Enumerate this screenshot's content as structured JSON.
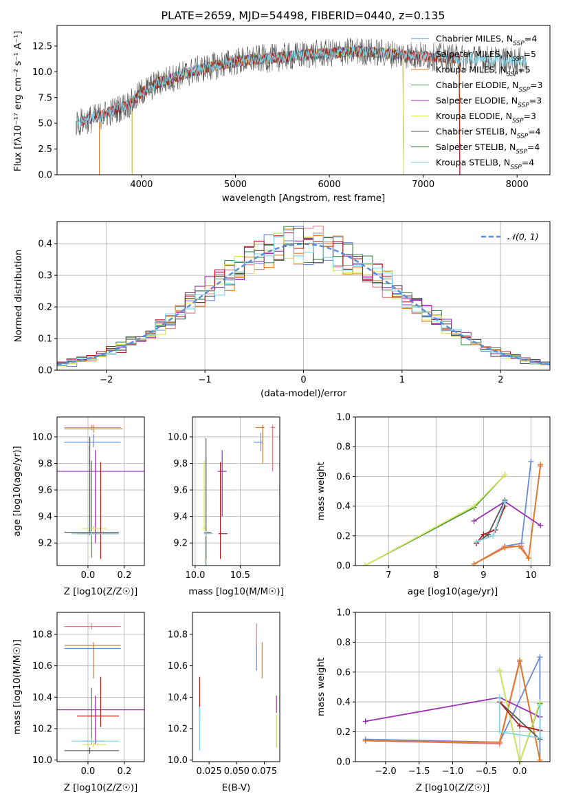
{
  "title": "PLATE=2659, MJD=54498, FIBERID=0440, z=0.135",
  "colors": {
    "Chabrier MILES": "#6a8ad8",
    "Salpeter MILES": "#e07a86",
    "Kroupa MILES": "#e07a22",
    "Chabrier ELODIE": "#3f8f48",
    "Salpeter ELODIE": "#9a2fb0",
    "Kroupa ELODIE": "#d7e65a",
    "Chabrier STELIB": "#555555",
    "Salpeter STELIB": "#b02020",
    "Kroupa STELIB": "#7fd6e8",
    "gauss": "#5a8ed6",
    "grid": "#b0b0b0"
  },
  "chart_data": [
    {
      "type": "line",
      "id": "spectrum",
      "title": "PLATE=2659, MJD=54498, FIBERID=0440, z=0.135",
      "xlabel": "wavelength [Angstrom, rest frame]",
      "ylabel": "Flux [fλ10⁻¹⁷ erg cm⁻² s⁻¹ A⁻¹]",
      "xlim": [
        3100,
        8350
      ],
      "ylim": [
        0,
        14.5
      ],
      "xticks": [
        4000,
        5000,
        6000,
        7000,
        8000
      ],
      "yticks": [
        0.0,
        2.5,
        5.0,
        7.5,
        10.0,
        12.5
      ],
      "grid": false,
      "legend_position": "right",
      "legend": [
        "Chabrier MILES, N_SSP=4",
        "Salpeter MILES, N_SSP=5",
        "Kroupa MILES, N_SSP=5",
        "Chabrier ELODIE, N_SSP=3",
        "Salpeter ELODIE, N_SSP=3",
        "Kroupa ELODIE, N_SSP=3",
        "Chabrier STELIB, N_SSP=4",
        "Salpeter STELIB, N_SSP=4",
        "Kroupa STELIB, N_SSP=4"
      ],
      "continuum": {
        "x": [
          3300,
          3500,
          3700,
          3900,
          4000,
          4200,
          4400,
          4600,
          4800,
          5000,
          5200,
          5500,
          5800,
          6000,
          6300,
          6600,
          6900,
          7200,
          7500,
          7800,
          8100
        ],
        "y": [
          5.0,
          5.5,
          6.2,
          7.0,
          8.0,
          9.0,
          9.6,
          10.2,
          10.6,
          11.0,
          11.2,
          11.4,
          11.7,
          11.8,
          12.0,
          11.8,
          11.6,
          11.4,
          11.3,
          11.1,
          11.0
        ]
      },
      "series_ranges": [
        {
          "name": "Chabrier MILES",
          "xmin": 3350,
          "xmax": 7400
        },
        {
          "name": "Salpeter MILES",
          "xmin": 3550,
          "xmax": 7400
        },
        {
          "name": "Kroupa MILES",
          "xmin": 3550,
          "xmax": 7400
        },
        {
          "name": "Chabrier ELODIE",
          "xmin": 3900,
          "xmax": 6800
        },
        {
          "name": "Salpeter ELODIE",
          "xmin": 3900,
          "xmax": 6800
        },
        {
          "name": "Kroupa ELODIE",
          "xmin": 3900,
          "xmax": 6800
        },
        {
          "name": "Chabrier STELIB",
          "xmin": 3300,
          "xmax": 8100
        },
        {
          "name": "Salpeter STELIB",
          "xmin": 3350,
          "xmax": 7400
        },
        {
          "name": "Kroupa STELIB",
          "xmin": 3300,
          "xmax": 8100
        }
      ]
    },
    {
      "type": "histogram",
      "id": "residuals",
      "xlabel": "(data-model)/error",
      "ylabel": "Normed distribution",
      "xlim": [
        -2.5,
        2.5
      ],
      "ylim": [
        0,
        0.47
      ],
      "xticks": [
        -2,
        -1,
        0,
        1,
        2
      ],
      "yticks": [
        0.0,
        0.1,
        0.2,
        0.3,
        0.4
      ],
      "grid": true,
      "legend": [
        "𝒩(0, 1)"
      ],
      "legend_position": "top-right",
      "bin_width": 0.1
    },
    {
      "type": "errorbar",
      "id": "age-vs-Z",
      "xlabel": "Z [log10(Z/Z☉)]",
      "ylabel": "age  [log10(age/yr)]",
      "xlim": [
        -0.17,
        0.31
      ],
      "ylim": [
        9.03,
        10.15
      ],
      "xticks": [
        0.0,
        0.2
      ],
      "yticks": [
        9.2,
        9.4,
        9.6,
        9.8,
        10.0
      ],
      "grid": true,
      "points": [
        {
          "name": "Chabrier MILES",
          "x": 0.03,
          "xerr": [
            0.16,
            0.15
          ],
          "y": 9.96,
          "yerr": [
            0.04,
            0.06
          ]
        },
        {
          "name": "Salpeter MILES",
          "x": 0.02,
          "xerr": [
            0.15,
            0.16
          ],
          "y": 10.07,
          "yerr": [
            0.02,
            0.02
          ]
        },
        {
          "name": "Kroupa MILES",
          "x": 0.03,
          "xerr": [
            0.16,
            0.16
          ],
          "y": 10.06,
          "yerr": [
            0.03,
            0.03
          ]
        },
        {
          "name": "Chabrier ELODIE",
          "x": 0.02,
          "xerr": [
            0.05,
            0.07
          ],
          "y": 9.27,
          "yerr": [
            0.18,
            0.55
          ]
        },
        {
          "name": "Salpeter ELODIE",
          "x": 0.04,
          "xerr": [
            0.33,
            0.28
          ],
          "y": 9.74,
          "yerr": [
            0.54,
            0.16
          ]
        },
        {
          "name": "Kroupa ELODIE",
          "x": 0.03,
          "xerr": [
            0.06,
            0.07
          ],
          "y": 9.31,
          "yerr": [
            0.02,
            0.02
          ]
        },
        {
          "name": "Chabrier STELIB",
          "x": 0.01,
          "xerr": [
            0.14,
            0.16
          ],
          "y": 9.28,
          "yerr": [
            0.02,
            0.72
          ]
        },
        {
          "name": "Salpeter STELIB",
          "x": 0.07,
          "xerr": [
            0.13,
            0.1
          ],
          "y": 9.27,
          "yerr": [
            0.19,
            0.54
          ]
        },
        {
          "name": "Kroupa STELIB",
          "x": 0.02,
          "xerr": [
            0.11,
            0.15
          ],
          "y": 9.27,
          "yerr": [
            0.02,
            0.02
          ]
        }
      ]
    },
    {
      "type": "errorbar",
      "id": "age-vs-mass",
      "xlabel": "mass [log10(M/M☉)]",
      "ylabel": "",
      "xlim": [
        9.97,
        10.94
      ],
      "ylim": [
        9.03,
        10.15
      ],
      "xticks": [
        10.0,
        10.5
      ],
      "yticks": [
        9.2,
        9.4,
        9.6,
        9.8,
        10.0
      ],
      "grid": true,
      "points": [
        {
          "name": "Chabrier MILES",
          "x": 10.73,
          "xerr": [
            0.08,
            0.02
          ],
          "y": 9.96,
          "yerr": [
            0.07,
            0.07
          ]
        },
        {
          "name": "Salpeter MILES",
          "x": 10.86,
          "xerr": [
            0.02,
            0.03
          ],
          "y": 10.07,
          "yerr": [
            0.33,
            0.02
          ]
        },
        {
          "name": "Kroupa MILES",
          "x": 10.75,
          "xerr": [
            0.08,
            0.02
          ],
          "y": 10.07,
          "yerr": [
            0.27,
            0.02
          ]
        },
        {
          "name": "Chabrier ELODIE",
          "x": 10.12,
          "xerr": [
            0.02,
            0.02
          ],
          "y": 9.27,
          "yerr": [
            0.55,
            0.58
          ]
        },
        {
          "name": "Salpeter ELODIE",
          "x": 10.3,
          "xerr": [
            0.05,
            0.05
          ],
          "y": 9.74,
          "yerr": [
            0.34,
            0.16
          ]
        },
        {
          "name": "Kroupa ELODIE",
          "x": 10.1,
          "xerr": [
            0.02,
            0.03
          ],
          "y": 9.31,
          "yerr": [
            0.02,
            0.51
          ]
        },
        {
          "name": "Chabrier STELIB",
          "x": 10.12,
          "xerr": [
            0.02,
            0.06
          ],
          "y": 9.28,
          "yerr": [
            0.2,
            0.71
          ]
        },
        {
          "name": "Salpeter STELIB",
          "x": 10.28,
          "xerr": [
            0.02,
            0.08
          ],
          "y": 9.27,
          "yerr": [
            0.19,
            0.54
          ]
        },
        {
          "name": "Kroupa STELIB",
          "x": 10.12,
          "xerr": [
            0.02,
            0.08
          ],
          "y": 9.27,
          "yerr": [
            0.02,
            0.02
          ]
        }
      ]
    },
    {
      "type": "line",
      "id": "mass-weight-vs-age",
      "xlabel": "age  [log10(age/yr)]",
      "ylabel": "mass weight",
      "xlim": [
        6.3,
        10.4
      ],
      "ylim": [
        0,
        1.0
      ],
      "xticks": [
        7,
        8,
        9,
        10
      ],
      "yticks": [
        0.0,
        0.2,
        0.4,
        0.6,
        0.8,
        1.0
      ],
      "grid": true,
      "series": [
        {
          "name": "Chabrier MILES",
          "x": [
            9.45,
            9.8,
            10.0
          ],
          "y": [
            0.13,
            0.15,
            0.7
          ]
        },
        {
          "name": "Salpeter MILES",
          "x": [
            8.8,
            9.45,
            9.8,
            9.95,
            10.2
          ],
          "y": [
            0.01,
            0.13,
            0.13,
            0.05,
            0.67
          ]
        },
        {
          "name": "Kroupa MILES",
          "x": [
            8.8,
            9.45,
            9.75,
            9.95,
            10.2
          ],
          "y": [
            0.01,
            0.12,
            0.13,
            0.05,
            0.68
          ]
        },
        {
          "name": "Chabrier ELODIE",
          "x": [
            6.5,
            8.8,
            9.45
          ],
          "y": [
            0.0,
            0.39,
            0.61
          ]
        },
        {
          "name": "Salpeter ELODIE",
          "x": [
            8.8,
            9.45,
            10.2
          ],
          "y": [
            0.3,
            0.43,
            0.27
          ]
        },
        {
          "name": "Kroupa ELODIE",
          "x": [
            6.5,
            8.8,
            9.45
          ],
          "y": [
            0.0,
            0.4,
            0.61
          ]
        },
        {
          "name": "Chabrier STELIB",
          "x": [
            8.85,
            9.1,
            9.45
          ],
          "y": [
            0.15,
            0.21,
            0.44
          ]
        },
        {
          "name": "Salpeter STELIB",
          "x": [
            8.85,
            9.0,
            9.25,
            9.45
          ],
          "y": [
            0.15,
            0.21,
            0.24,
            0.4
          ]
        },
        {
          "name": "Kroupa STELIB",
          "x": [
            8.85,
            9.2,
            9.45
          ],
          "y": [
            0.16,
            0.2,
            0.43
          ]
        }
      ]
    },
    {
      "type": "errorbar",
      "id": "mass-vs-Z",
      "xlabel": "Z [log10(Z/Z☉)]",
      "ylabel": "mass [log10(M/M☉)]",
      "xlim": [
        -0.17,
        0.31
      ],
      "ylim": [
        9.99,
        10.94
      ],
      "xticks": [
        0.0,
        0.2
      ],
      "yticks": [
        10.0,
        10.2,
        10.4,
        10.6,
        10.8
      ],
      "grid": true,
      "points": [
        {
          "name": "Chabrier MILES",
          "x": 0.03,
          "xerr": [
            0.16,
            0.15
          ],
          "y": 10.71,
          "yerr": [
            0.02,
            0.02
          ]
        },
        {
          "name": "Salpeter MILES",
          "x": 0.02,
          "xerr": [
            0.15,
            0.16
          ],
          "y": 10.85,
          "yerr": [
            0.02,
            0.02
          ]
        },
        {
          "name": "Kroupa MILES",
          "x": 0.03,
          "xerr": [
            0.16,
            0.15
          ],
          "y": 10.73,
          "yerr": [
            0.21,
            0.02
          ]
        },
        {
          "name": "Chabrier ELODIE",
          "x": 0.02,
          "xerr": [
            0.05,
            0.07
          ],
          "y": 10.12,
          "yerr": [
            0.02,
            0.34
          ]
        },
        {
          "name": "Salpeter ELODIE",
          "x": 0.04,
          "xerr": [
            0.33,
            0.28
          ],
          "y": 10.32,
          "yerr": [
            0.22,
            0.09
          ]
        },
        {
          "name": "Kroupa ELODIE",
          "x": 0.03,
          "xerr": [
            0.06,
            0.07
          ],
          "y": 10.1,
          "yerr": [
            0.02,
            0.02
          ]
        },
        {
          "name": "Chabrier STELIB",
          "x": 0.01,
          "xerr": [
            0.14,
            0.16
          ],
          "y": 10.06,
          "yerr": [
            0.02,
            0.02
          ]
        },
        {
          "name": "Salpeter STELIB",
          "x": 0.07,
          "xerr": [
            0.13,
            0.1
          ],
          "y": 10.28,
          "yerr": [
            0.07,
            0.25
          ]
        },
        {
          "name": "Kroupa STELIB",
          "x": 0.02,
          "xerr": [
            0.11,
            0.15
          ],
          "y": 10.12,
          "yerr": [
            0.02,
            0.02
          ]
        }
      ]
    },
    {
      "type": "errorbar",
      "id": "mass-vs-ebv",
      "xlabel": "E(B-V)",
      "ylabel": "",
      "xlim": [
        0.01,
        0.089
      ],
      "ylim": [
        9.99,
        10.94
      ],
      "xticks": [
        0.025,
        0.05,
        0.075
      ],
      "yticks": [
        10.0,
        10.2,
        10.4,
        10.6,
        10.8
      ],
      "grid": false,
      "points": [
        {
          "name": "Chabrier MILES",
          "x": 0.068,
          "xerr": [
            0.0,
            0.0
          ],
          "y": 10.71,
          "yerr": [
            0.14,
            0.02
          ]
        },
        {
          "name": "Salpeter MILES",
          "x": 0.068,
          "xerr": [
            0.0,
            0.0
          ],
          "y": 10.85,
          "yerr": [
            0.13,
            0.02
          ]
        },
        {
          "name": "Kroupa MILES",
          "x": 0.073,
          "xerr": [
            0.0,
            0.0
          ],
          "y": 10.73,
          "yerr": [
            0.21,
            0.02
          ]
        },
        {
          "name": "Chabrier ELODIE",
          "x": 0.086,
          "xerr": [
            0.0,
            0.0
          ],
          "y": 10.12,
          "yerr": [
            0.04,
            0.16
          ]
        },
        {
          "name": "Salpeter ELODIE",
          "x": 0.086,
          "xerr": [
            0.0,
            0.0
          ],
          "y": 10.32,
          "yerr": [
            0.02,
            0.09
          ]
        },
        {
          "name": "Kroupa ELODIE",
          "x": 0.086,
          "xerr": [
            0.0,
            0.0
          ],
          "y": 10.1,
          "yerr": [
            0.02,
            0.19
          ]
        },
        {
          "name": "Chabrier STELIB",
          "x": 0.0165,
          "xerr": [
            0.0,
            0.0
          ],
          "y": 10.3,
          "yerr": [
            0.22,
            0.06
          ]
        },
        {
          "name": "Salpeter STELIB",
          "x": 0.0165,
          "xerr": [
            0.0,
            0.0
          ],
          "y": 10.28,
          "yerr": [
            0.02,
            0.25
          ]
        },
        {
          "name": "Kroupa STELIB",
          "x": 0.0165,
          "xerr": [
            0.0,
            0.0
          ],
          "y": 10.28,
          "yerr": [
            0.22,
            0.06
          ]
        }
      ]
    },
    {
      "type": "line",
      "id": "mass-weight-vs-Z",
      "xlabel": "Z [log10(Z/Z☉)]",
      "ylabel": "mass weight",
      "xlim": [
        -2.45,
        0.45
      ],
      "ylim": [
        0,
        1.0
      ],
      "xticks": [
        -2.0,
        -1.5,
        -1.0,
        -0.5,
        0.0
      ],
      "yticks": [
        0.0,
        0.2,
        0.4,
        0.6,
        0.8,
        1.0
      ],
      "grid": true,
      "series": [
        {
          "name": "Chabrier MILES",
          "x": [
            -2.3,
            -0.3,
            0.3,
            0.3
          ],
          "y": [
            0.15,
            0.13,
            0.7,
            0.01
          ]
        },
        {
          "name": "Salpeter MILES",
          "x": [
            -2.3,
            -0.3,
            0.0,
            0.3
          ],
          "y": [
            0.14,
            0.12,
            0.67,
            0.01
          ]
        },
        {
          "name": "Kroupa MILES",
          "x": [
            -2.3,
            -0.3,
            0.0,
            0.3
          ],
          "y": [
            0.14,
            0.13,
            0.68,
            0.01
          ]
        },
        {
          "name": "Chabrier ELODIE",
          "x": [
            -0.3,
            0.0,
            0.3
          ],
          "y": [
            0.61,
            0.0,
            0.39
          ]
        },
        {
          "name": "Salpeter ELODIE",
          "x": [
            -2.3,
            -0.3,
            0.3
          ],
          "y": [
            0.27,
            0.43,
            0.3
          ]
        },
        {
          "name": "Kroupa ELODIE",
          "x": [
            -0.3,
            0.0,
            0.3
          ],
          "y": [
            0.61,
            0.0,
            0.4
          ]
        },
        {
          "name": "Chabrier STELIB",
          "x": [
            -0.3,
            0.3,
            0.3
          ],
          "y": [
            0.4,
            0.15,
            0.21
          ]
        },
        {
          "name": "Salpeter STELIB",
          "x": [
            -0.3,
            0.0,
            0.3
          ],
          "y": [
            0.4,
            0.24,
            0.21
          ]
        },
        {
          "name": "Kroupa STELIB",
          "x": [
            -0.3,
            -0.3,
            0.3,
            0.3
          ],
          "y": [
            0.43,
            0.2,
            0.16,
            0.38
          ]
        }
      ]
    }
  ]
}
